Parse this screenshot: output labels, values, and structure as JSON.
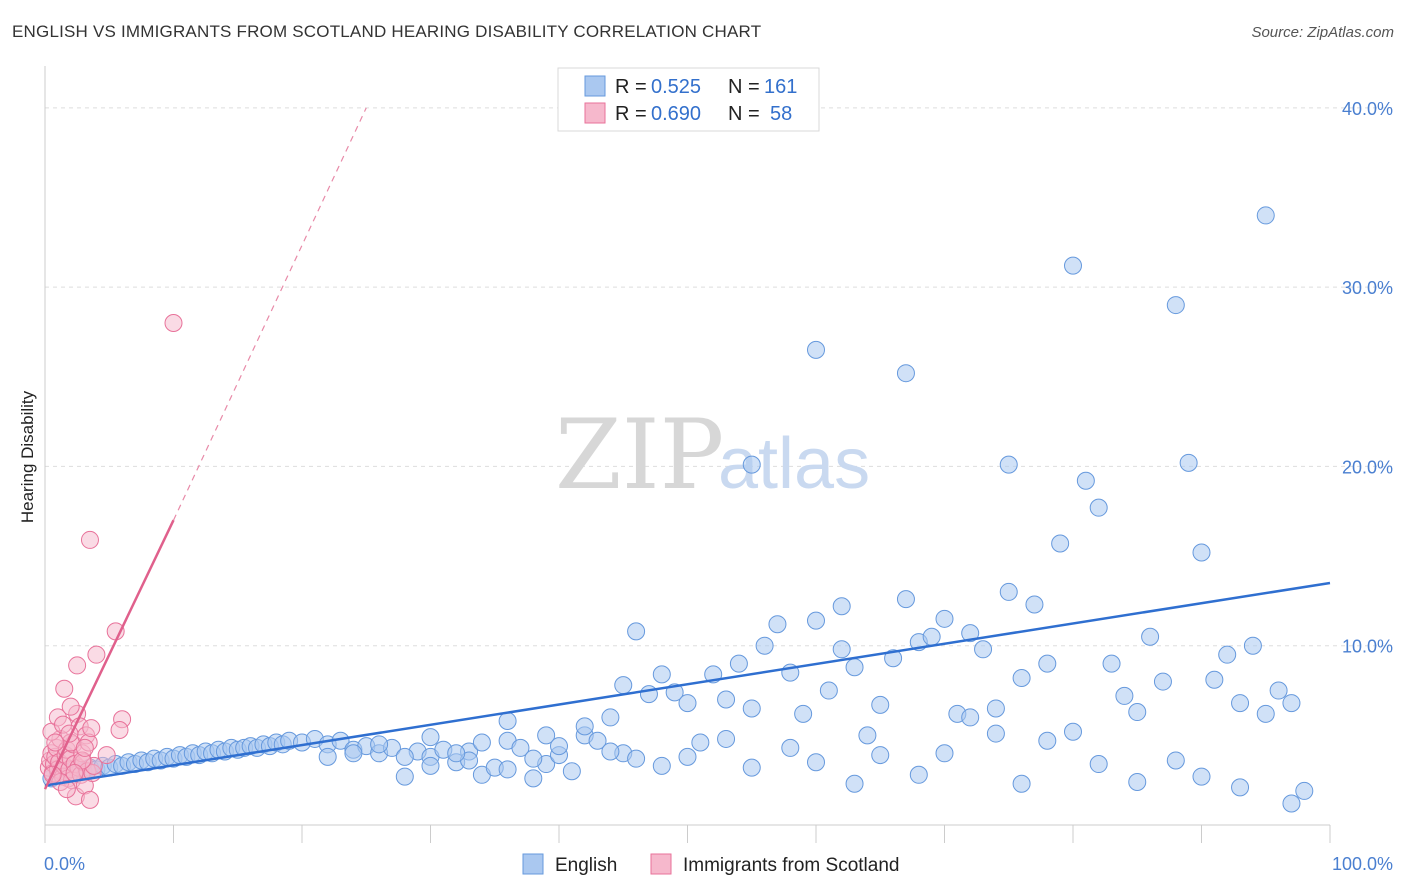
{
  "title": "ENGLISH VS IMMIGRANTS FROM SCOTLAND HEARING DISABILITY CORRELATION CHART",
  "source": "Source: ZipAtlas.com",
  "watermark": {
    "part1": "ZIP",
    "part2": "atlas"
  },
  "colors": {
    "english": "#6699dd",
    "english_fill": "#aac8f0",
    "scotland": "#e8729a",
    "scotland_fill": "#f6b8cc",
    "axis_text": "#4a7fd0"
  },
  "legend": {
    "rows": [
      {
        "r_label": "R =",
        "r_value": "0.525",
        "n_label": "N =",
        "n_value": "161"
      },
      {
        "r_label": "R =",
        "r_value": "0.690",
        "n_label": "N =",
        "n_value": "58"
      }
    ]
  },
  "chart_data": {
    "type": "scatter",
    "title": "",
    "xlabel": "",
    "ylabel": "Hearing Disability",
    "xlim": [
      0,
      100
    ],
    "ylim": [
      0,
      42
    ],
    "y_ticks": [
      10,
      20,
      30,
      40
    ],
    "y_tick_labels": [
      "10.0%",
      "20.0%",
      "30.0%",
      "40.0%"
    ],
    "x_tick_labels": [
      "0.0%",
      "100.0%"
    ],
    "grid": true,
    "legend_position": "top-center",
    "series": [
      {
        "name": "English",
        "trend": {
          "x": [
            0,
            100
          ],
          "y": [
            2.2,
            13.5
          ]
        },
        "points": [
          [
            0.5,
            2.6
          ],
          [
            1,
            2.8
          ],
          [
            1.5,
            3.0
          ],
          [
            2,
            2.9
          ],
          [
            2.5,
            3.1
          ],
          [
            3,
            3.0
          ],
          [
            3.5,
            3.2
          ],
          [
            4,
            3.1
          ],
          [
            4.5,
            3.3
          ],
          [
            5,
            3.2
          ],
          [
            5.5,
            3.4
          ],
          [
            6,
            3.3
          ],
          [
            6.5,
            3.5
          ],
          [
            7,
            3.4
          ],
          [
            7.5,
            3.6
          ],
          [
            8,
            3.5
          ],
          [
            8.5,
            3.7
          ],
          [
            9,
            3.6
          ],
          [
            9.5,
            3.8
          ],
          [
            10,
            3.7
          ],
          [
            10.5,
            3.9
          ],
          [
            11,
            3.8
          ],
          [
            11.5,
            4.0
          ],
          [
            12,
            3.9
          ],
          [
            12.5,
            4.1
          ],
          [
            13,
            4.0
          ],
          [
            13.5,
            4.2
          ],
          [
            14,
            4.1
          ],
          [
            14.5,
            4.3
          ],
          [
            15,
            4.2
          ],
          [
            15.5,
            4.3
          ],
          [
            16,
            4.4
          ],
          [
            16.5,
            4.3
          ],
          [
            17,
            4.5
          ],
          [
            17.5,
            4.4
          ],
          [
            18,
            4.6
          ],
          [
            18.5,
            4.5
          ],
          [
            19,
            4.7
          ],
          [
            20,
            4.6
          ],
          [
            21,
            4.8
          ],
          [
            22,
            4.5
          ],
          [
            23,
            4.7
          ],
          [
            24,
            4.2
          ],
          [
            25,
            4.4
          ],
          [
            26,
            4.0
          ],
          [
            27,
            4.3
          ],
          [
            28,
            2.7
          ],
          [
            29,
            4.1
          ],
          [
            30,
            3.8
          ],
          [
            31,
            4.2
          ],
          [
            32,
            3.5
          ],
          [
            33,
            4.1
          ],
          [
            34,
            2.8
          ],
          [
            35,
            3.2
          ],
          [
            36,
            4.7
          ],
          [
            37,
            4.3
          ],
          [
            38,
            2.6
          ],
          [
            39,
            3.4
          ],
          [
            40,
            3.9
          ],
          [
            41,
            3.0
          ],
          [
            42,
            5.0
          ],
          [
            43,
            4.7
          ],
          [
            44,
            6.0
          ],
          [
            45,
            7.8
          ],
          [
            46,
            10.8
          ],
          [
            47,
            7.3
          ],
          [
            48,
            8.4
          ],
          [
            49,
            7.4
          ],
          [
            50,
            6.8
          ],
          [
            51,
            4.6
          ],
          [
            52,
            8.4
          ],
          [
            53,
            7.0
          ],
          [
            54,
            9.0
          ],
          [
            55,
            6.5
          ],
          [
            56,
            10.0
          ],
          [
            57,
            11.2
          ],
          [
            58,
            8.5
          ],
          [
            59,
            6.2
          ],
          [
            60,
            11.4
          ],
          [
            61,
            7.5
          ],
          [
            62,
            9.8
          ],
          [
            63,
            8.8
          ],
          [
            64,
            5.0
          ],
          [
            65,
            6.7
          ],
          [
            66,
            9.3
          ],
          [
            67,
            12.6
          ],
          [
            68,
            10.2
          ],
          [
            69,
            10.5
          ],
          [
            70,
            11.5
          ],
          [
            71,
            6.2
          ],
          [
            72,
            10.7
          ],
          [
            73,
            9.8
          ],
          [
            74,
            6.5
          ],
          [
            75,
            13.0
          ],
          [
            76,
            8.2
          ],
          [
            77,
            12.3
          ],
          [
            78,
            9.0
          ],
          [
            79,
            15.7
          ],
          [
            80,
            31.2
          ],
          [
            81,
            19.2
          ],
          [
            82,
            17.7
          ],
          [
            83,
            9.0
          ],
          [
            84,
            7.2
          ],
          [
            85,
            6.3
          ],
          [
            86,
            10.5
          ],
          [
            87,
            8.0
          ],
          [
            88,
            29.0
          ],
          [
            89,
            20.2
          ],
          [
            90,
            15.2
          ],
          [
            91,
            8.1
          ],
          [
            92,
            9.5
          ],
          [
            93,
            6.8
          ],
          [
            94,
            10.0
          ],
          [
            95,
            34.0
          ],
          [
            96,
            7.5
          ],
          [
            97,
            6.8
          ],
          [
            60,
            26.5
          ],
          [
            55,
            20.1
          ],
          [
            67,
            25.2
          ],
          [
            62,
            12.2
          ],
          [
            75,
            20.1
          ],
          [
            30,
            4.9
          ],
          [
            33,
            3.6
          ],
          [
            36,
            5.8
          ],
          [
            39,
            5.0
          ],
          [
            42,
            5.5
          ],
          [
            45,
            4.0
          ],
          [
            50,
            3.8
          ],
          [
            53,
            4.8
          ],
          [
            55,
            3.2
          ],
          [
            58,
            4.3
          ],
          [
            60,
            3.5
          ],
          [
            63,
            2.3
          ],
          [
            65,
            3.9
          ],
          [
            68,
            2.8
          ],
          [
            70,
            4.0
          ],
          [
            72,
            6.0
          ],
          [
            74,
            5.1
          ],
          [
            76,
            2.3
          ],
          [
            78,
            4.7
          ],
          [
            80,
            5.2
          ],
          [
            82,
            3.4
          ],
          [
            85,
            2.4
          ],
          [
            88,
            3.6
          ],
          [
            90,
            2.7
          ],
          [
            93,
            2.1
          ],
          [
            95,
            6.2
          ],
          [
            97,
            1.2
          ],
          [
            98,
            1.9
          ],
          [
            22,
            3.8
          ],
          [
            24,
            4.0
          ],
          [
            26,
            4.5
          ],
          [
            28,
            3.8
          ],
          [
            30,
            3.3
          ],
          [
            32,
            4.0
          ],
          [
            34,
            4.6
          ],
          [
            36,
            3.1
          ],
          [
            38,
            3.7
          ],
          [
            40,
            4.4
          ],
          [
            44,
            4.1
          ],
          [
            46,
            3.7
          ],
          [
            48,
            3.3
          ]
        ]
      },
      {
        "name": "Immigrants from Scotland",
        "trend": {
          "x": [
            0,
            10
          ],
          "y": [
            2.0,
            17.0
          ]
        },
        "trend_extension": {
          "x": [
            10,
            25
          ],
          "y": [
            17.0,
            40.0
          ]
        },
        "points": [
          [
            0.3,
            3.2
          ],
          [
            0.4,
            3.6
          ],
          [
            0.5,
            4.0
          ],
          [
            0.6,
            2.9
          ],
          [
            0.7,
            3.4
          ],
          [
            0.8,
            3.8
          ],
          [
            0.9,
            4.3
          ],
          [
            1.0,
            3.1
          ],
          [
            1.1,
            3.5
          ],
          [
            1.2,
            4.8
          ],
          [
            1.3,
            3.0
          ],
          [
            1.4,
            2.7
          ],
          [
            1.5,
            3.3
          ],
          [
            1.6,
            3.9
          ],
          [
            1.7,
            4.2
          ],
          [
            1.8,
            2.6
          ],
          [
            1.9,
            3.1
          ],
          [
            2.0,
            3.7
          ],
          [
            2.1,
            2.5
          ],
          [
            2.2,
            4.5
          ],
          [
            2.3,
            3.4
          ],
          [
            2.4,
            1.6
          ],
          [
            2.5,
            6.2
          ],
          [
            2.6,
            3.2
          ],
          [
            2.7,
            5.5
          ],
          [
            2.8,
            2.8
          ],
          [
            2.9,
            4.0
          ],
          [
            3.0,
            3.5
          ],
          [
            3.1,
            2.2
          ],
          [
            3.2,
            5.0
          ],
          [
            3.3,
            3.0
          ],
          [
            3.4,
            4.6
          ],
          [
            3.5,
            1.4
          ],
          [
            3.6,
            5.4
          ],
          [
            3.7,
            2.9
          ],
          [
            3.8,
            3.3
          ],
          [
            0.5,
            5.2
          ],
          [
            1.0,
            6.0
          ],
          [
            1.5,
            7.6
          ],
          [
            2.0,
            6.6
          ],
          [
            2.0,
            4.6
          ],
          [
            2.5,
            8.9
          ],
          [
            3.5,
            15.9
          ],
          [
            4.0,
            9.5
          ],
          [
            5.5,
            10.8
          ],
          [
            6.0,
            5.9
          ],
          [
            5.8,
            5.3
          ],
          [
            4.8,
            3.9
          ],
          [
            10.0,
            28.0
          ],
          [
            1.2,
            2.4
          ],
          [
            1.7,
            2.0
          ],
          [
            0.8,
            4.6
          ],
          [
            2.9,
            3.6
          ],
          [
            3.1,
            4.3
          ],
          [
            2.3,
            2.9
          ],
          [
            1.4,
            5.6
          ],
          [
            1.9,
            5.1
          ],
          [
            0.6,
            2.8
          ]
        ]
      }
    ]
  }
}
